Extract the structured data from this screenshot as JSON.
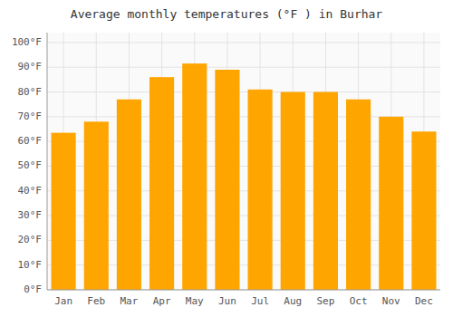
{
  "chart_data": {
    "type": "bar",
    "title": "Average monthly temperatures (°F ) in Burhar",
    "categories": [
      "Jan",
      "Feb",
      "Mar",
      "Apr",
      "May",
      "Jun",
      "Jul",
      "Aug",
      "Sep",
      "Oct",
      "Nov",
      "Dec"
    ],
    "values": [
      63.5,
      68,
      77,
      86,
      91.5,
      89,
      81,
      80,
      80,
      77,
      70,
      64
    ],
    "color": "#FFA500",
    "ylim": [
      0,
      104
    ],
    "yticks": [
      {
        "value": 0,
        "label": "0°F"
      },
      {
        "value": 10,
        "label": "10°F"
      },
      {
        "value": 20,
        "label": "20°F"
      },
      {
        "value": 30,
        "label": "30°F"
      },
      {
        "value": 40,
        "label": "40°F"
      },
      {
        "value": 50,
        "label": "50°F"
      },
      {
        "value": 60,
        "label": "60°F"
      },
      {
        "value": 70,
        "label": "70°F"
      },
      {
        "value": 80,
        "label": "80°F"
      },
      {
        "value": 90,
        "label": "90°F"
      },
      {
        "value": 100,
        "label": "100°F"
      }
    ],
    "grid": true
  }
}
